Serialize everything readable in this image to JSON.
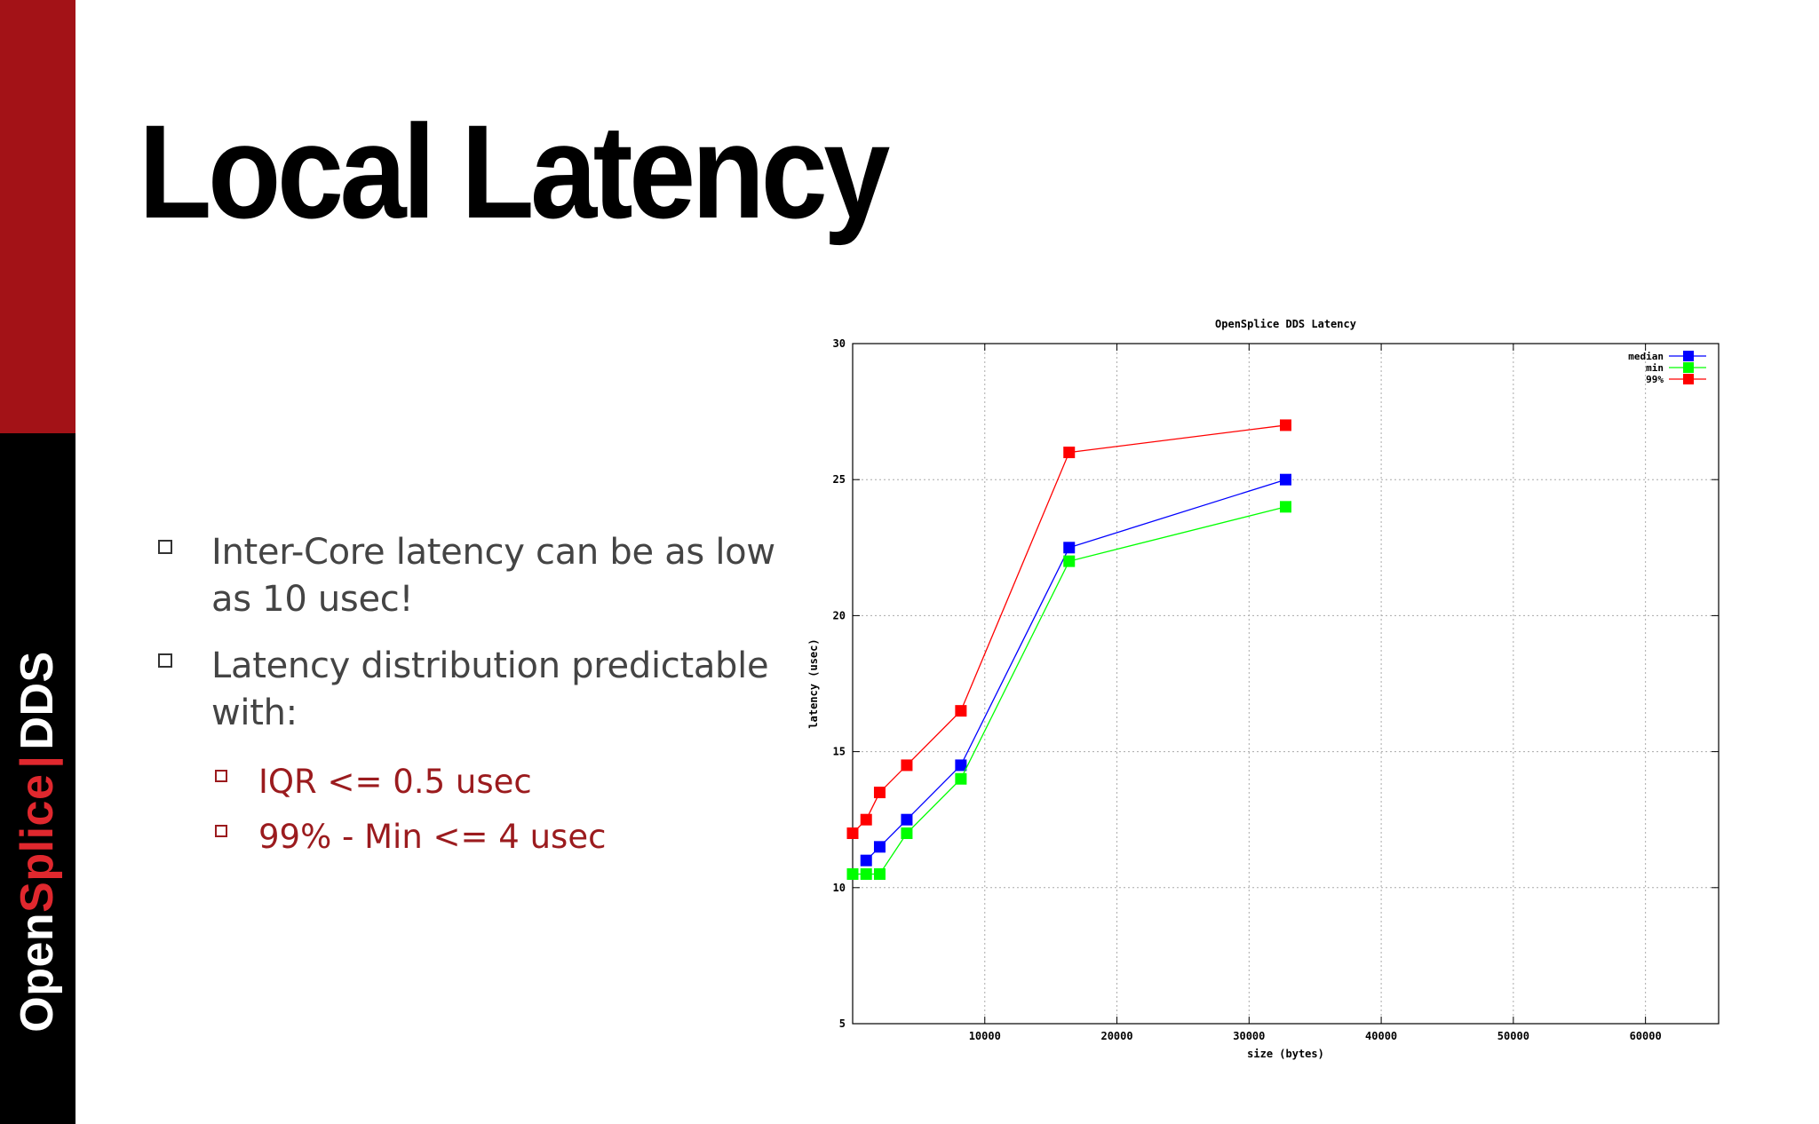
{
  "brand": {
    "part1": "Open",
    "part2": "Splice",
    "separator": "|",
    "part3": "DDS"
  },
  "slide": {
    "title": "Local Latency",
    "bullets": [
      {
        "text": "Inter-Core latency can be as low as 10 usec!"
      },
      {
        "text": "Latency distribution predictable with:",
        "sub": [
          {
            "text": "IQR <= 0.5 usec"
          },
          {
            "text": "99% - Min <= 4 usec"
          }
        ]
      }
    ]
  },
  "colors": {
    "sidebar_top": "#a31217",
    "sidebar_bottom": "#000000",
    "accent": "#9b1b1e"
  },
  "chart_data": {
    "type": "line",
    "title": "OpenSplice DDS Latency",
    "xlabel": "size (bytes)",
    "ylabel": "latency (usec)",
    "xlim": [
      0,
      65536
    ],
    "ylim": [
      5,
      30
    ],
    "xticks": [
      10000,
      20000,
      30000,
      40000,
      50000,
      60000
    ],
    "yticks": [
      5,
      10,
      15,
      20,
      25,
      30
    ],
    "grid": true,
    "legend_position": "top-right",
    "x": [
      0,
      1024,
      2048,
      4096,
      8192,
      16384,
      32768,
      65536
    ],
    "series": [
      {
        "name": "median",
        "color": "#0000ff",
        "values": [
          null,
          11.0,
          11.5,
          12.5,
          14.5,
          22.5,
          25.0,
          null
        ]
      },
      {
        "name": "min",
        "color": "#00ff00",
        "values": [
          10.5,
          10.5,
          10.5,
          12.0,
          14.0,
          22.0,
          24.0,
          null
        ]
      },
      {
        "name": "99%",
        "color": "#ff0000",
        "values": [
          12.0,
          12.5,
          13.5,
          14.5,
          16.5,
          26.0,
          27.0,
          null
        ]
      }
    ]
  }
}
